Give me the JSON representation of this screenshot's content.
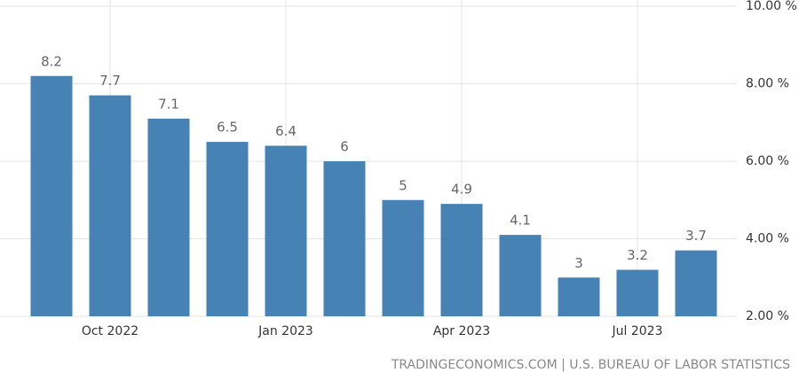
{
  "chart_data": {
    "type": "bar",
    "categories": [
      null,
      "Oct 2022",
      null,
      null,
      "Jan 2023",
      null,
      null,
      "Apr 2023",
      null,
      null,
      "Jul 2023",
      null
    ],
    "values": [
      8.2,
      7.7,
      7.1,
      6.5,
      6.4,
      6,
      5,
      4.9,
      4.1,
      3,
      3.2,
      3.7
    ],
    "color": "#4682b4",
    "ylim": [
      2,
      10
    ],
    "yticks": [
      {
        "value": 2,
        "label": "2.00 %"
      },
      {
        "value": 4,
        "label": "4.00 %"
      },
      {
        "value": 6,
        "label": "6.00 %"
      },
      {
        "value": 8,
        "label": "8.00 %"
      },
      {
        "value": 10,
        "label": "10.00 %"
      }
    ],
    "grid": true,
    "source": "TRADINGECONOMICS.COM | U.S. BUREAU OF LABOR STATISTICS"
  }
}
